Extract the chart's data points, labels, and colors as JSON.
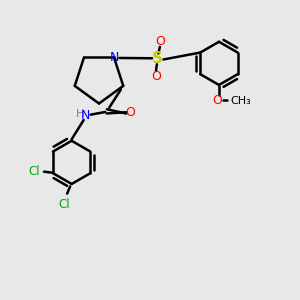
{
  "bg_color": "#e8e8e8",
  "bond_color": "#000000",
  "n_color": "#0000ff",
  "o_color": "#ff0000",
  "s_color": "#cccc00",
  "cl_color": "#00aa00",
  "h_color": "#808080",
  "lw": 1.8,
  "xlim": [
    0,
    10
  ],
  "ylim": [
    0,
    10
  ]
}
